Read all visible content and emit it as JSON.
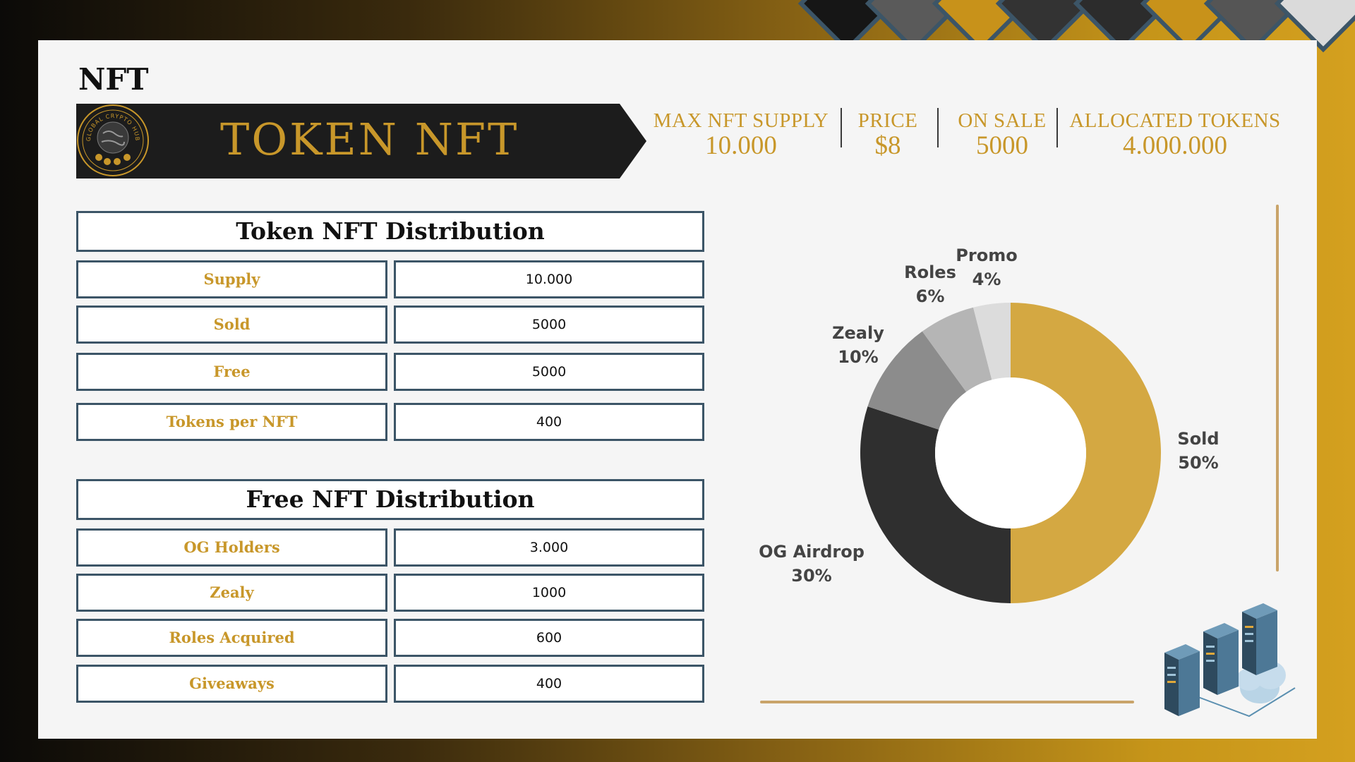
{
  "page": {
    "title": "NFT"
  },
  "banner": {
    "title": "TOKEN NFT",
    "logo_text": "GLOBAL CRYPTO HUB"
  },
  "stats": [
    {
      "label": "MAX NFT SUPPLY",
      "value": "10.000"
    },
    {
      "label": "PRICE",
      "value": "$8"
    },
    {
      "label": "ON SALE",
      "value": "5000"
    },
    {
      "label": "ALLOCATED TOKENS",
      "value": "4.000.000"
    }
  ],
  "token_table": {
    "title": "Token NFT Distribution",
    "rows": [
      {
        "label": "Supply",
        "value": "10.000"
      },
      {
        "label": "Sold",
        "value": "5000"
      },
      {
        "label": "Free",
        "value": "5000"
      },
      {
        "label": "Tokens per NFT",
        "value": "400"
      }
    ]
  },
  "free_table": {
    "title": "Free NFT Distribution",
    "rows": [
      {
        "label": "OG Holders",
        "value": "3.000"
      },
      {
        "label": "Zealy",
        "value": "1000"
      },
      {
        "label": "Roles Acquired",
        "value": "600"
      },
      {
        "label": "Giveaways",
        "value": "400"
      }
    ]
  },
  "chart_data": {
    "type": "pie",
    "donut": true,
    "series": [
      {
        "name": "Sold",
        "value": 50,
        "label": "50%",
        "color": "#d4a842"
      },
      {
        "name": "OG Airdrop",
        "value": 30,
        "label": "30%",
        "color": "#2f2f2f"
      },
      {
        "name": "Zealy",
        "value": 10,
        "label": "10%",
        "color": "#8c8c8c"
      },
      {
        "name": "Roles",
        "value": 6,
        "label": "6%",
        "color": "#b5b5b5"
      },
      {
        "name": "Promo",
        "value": 4,
        "label": "4%",
        "color": "#dcdcdc"
      }
    ]
  },
  "colors": {
    "gold": "#c8972a",
    "border": "#3c5567",
    "dark": "#1c1c1c"
  }
}
